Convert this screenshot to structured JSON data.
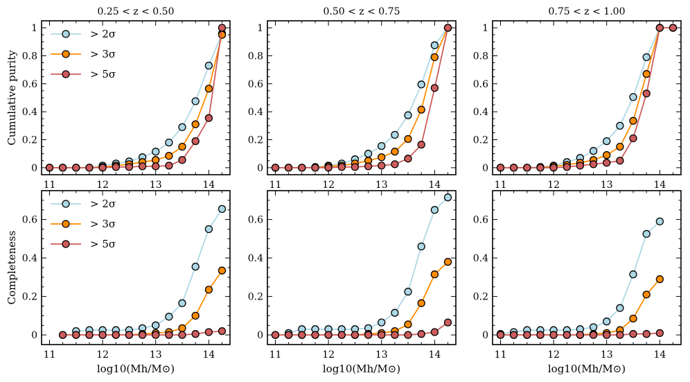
{
  "colors": {
    "sigma2": "#add8e6",
    "sigma3": "#ff8c00",
    "sigma5": "#cd5c5c",
    "edge": "#000000",
    "background": "#ffffff"
  },
  "legend": [
    {
      "key": "s2",
      "label": "> 2σ"
    },
    {
      "key": "s3",
      "label": "> 3σ"
    },
    {
      "key": "s5",
      "label": "> 5σ"
    }
  ],
  "xlabel": "log10(Mh/M⊙)",
  "chart_data": [
    {
      "type": "line",
      "row": "purity",
      "col": 0,
      "title": "0.25 < z < 0.50",
      "ylabel": "Cumulative purity",
      "xlim": [
        10.85,
        14.4
      ],
      "ylim": [
        -0.05,
        1.05
      ],
      "xticks": [
        11,
        12,
        13,
        14
      ],
      "yticks": [
        0.0,
        0.2,
        0.4,
        0.6,
        0.8,
        1.0
      ],
      "series": [
        {
          "name": "s2",
          "x": [
            11.0,
            11.25,
            11.5,
            11.75,
            12.0,
            12.25,
            12.5,
            12.75,
            13.0,
            13.25,
            13.5,
            13.75,
            14.0,
            14.25
          ],
          "y": [
            0.0,
            0.0,
            0.0,
            0.0,
            0.015,
            0.03,
            0.045,
            0.075,
            0.115,
            0.18,
            0.29,
            0.475,
            0.73,
            0.96
          ]
        },
        {
          "name": "s3",
          "x": [
            11.0,
            11.25,
            11.5,
            11.75,
            12.0,
            12.25,
            12.5,
            12.75,
            13.0,
            13.25,
            13.5,
            13.75,
            14.0,
            14.25
          ],
          "y": [
            0.0,
            0.0,
            0.0,
            0.0,
            0.005,
            0.015,
            0.025,
            0.04,
            0.055,
            0.085,
            0.15,
            0.31,
            0.565,
            0.95
          ]
        },
        {
          "name": "s5",
          "x": [
            11.0,
            11.25,
            11.5,
            11.75,
            12.0,
            12.25,
            12.5,
            12.75,
            13.0,
            13.25,
            13.5,
            13.75,
            14.0,
            14.25
          ],
          "y": [
            0.0,
            0.0,
            0.0,
            0.0,
            0.0,
            0.005,
            0.005,
            0.01,
            0.01,
            0.015,
            0.055,
            0.19,
            0.355,
            1.0
          ]
        }
      ]
    },
    {
      "type": "line",
      "row": "purity",
      "col": 1,
      "title": "0.50 < z < 0.75",
      "ylabel": "",
      "xlim": [
        10.85,
        14.4
      ],
      "ylim": [
        -0.05,
        1.05
      ],
      "xticks": [
        11,
        12,
        13,
        14
      ],
      "yticks": [
        0.0,
        0.2,
        0.4,
        0.6,
        0.8,
        1.0
      ],
      "series": [
        {
          "name": "s2",
          "x": [
            11.0,
            11.25,
            11.5,
            11.75,
            12.0,
            12.25,
            12.5,
            12.75,
            13.0,
            13.25,
            13.5,
            13.75,
            14.0,
            14.25
          ],
          "y": [
            0.0,
            0.0,
            0.0,
            0.005,
            0.015,
            0.03,
            0.06,
            0.1,
            0.155,
            0.235,
            0.375,
            0.595,
            0.875,
            1.0
          ]
        },
        {
          "name": "s3",
          "x": [
            11.0,
            11.25,
            11.5,
            11.75,
            12.0,
            12.25,
            12.5,
            12.75,
            13.0,
            13.25,
            13.5,
            13.75,
            14.0,
            14.25
          ],
          "y": [
            0.0,
            0.0,
            0.0,
            0.0,
            0.01,
            0.015,
            0.03,
            0.05,
            0.075,
            0.115,
            0.205,
            0.415,
            0.79,
            1.0
          ]
        },
        {
          "name": "s5",
          "x": [
            11.0,
            11.25,
            11.5,
            11.75,
            12.0,
            12.25,
            12.5,
            12.75,
            13.0,
            13.25,
            13.5,
            13.75,
            14.0,
            14.25
          ],
          "y": [
            0.0,
            0.0,
            0.0,
            0.0,
            0.0,
            0.005,
            0.005,
            0.01,
            0.015,
            0.025,
            0.065,
            0.165,
            0.57,
            1.0
          ]
        }
      ]
    },
    {
      "type": "line",
      "row": "purity",
      "col": 2,
      "title": "0.75 < z < 1.00",
      "ylabel": "",
      "xlim": [
        10.85,
        14.4
      ],
      "ylim": [
        -0.05,
        1.05
      ],
      "xticks": [
        11,
        12,
        13,
        14
      ],
      "yticks": [
        0.0,
        0.2,
        0.4,
        0.6,
        0.8,
        1.0
      ],
      "series": [
        {
          "name": "s2",
          "x": [
            11.0,
            11.25,
            11.5,
            11.75,
            12.0,
            12.25,
            12.5,
            12.75,
            13.0,
            13.25,
            13.5,
            13.75,
            14.0,
            14.25
          ],
          "y": [
            0.0,
            0.0,
            0.0,
            0.005,
            0.015,
            0.04,
            0.07,
            0.12,
            0.19,
            0.3,
            0.505,
            0.79,
            1.0,
            1.0
          ]
        },
        {
          "name": "s3",
          "x": [
            11.0,
            11.25,
            11.5,
            11.75,
            12.0,
            12.25,
            12.5,
            12.75,
            13.0,
            13.25,
            13.5,
            13.75,
            14.0,
            14.25
          ],
          "y": [
            0.0,
            0.0,
            0.0,
            0.0,
            0.01,
            0.02,
            0.035,
            0.055,
            0.09,
            0.15,
            0.335,
            0.67,
            1.0,
            1.0
          ]
        },
        {
          "name": "s5",
          "x": [
            11.0,
            11.25,
            11.5,
            11.75,
            12.0,
            12.25,
            12.5,
            12.75,
            13.0,
            13.25,
            13.5,
            13.75,
            14.0,
            14.25
          ],
          "y": [
            0.0,
            0.0,
            0.0,
            0.0,
            0.0,
            0.005,
            0.015,
            0.025,
            0.035,
            0.05,
            0.21,
            0.53,
            1.0,
            1.0
          ]
        }
      ]
    },
    {
      "type": "line",
      "row": "completeness",
      "col": 0,
      "title": "",
      "ylabel": "Completeness",
      "xlim": [
        10.85,
        14.4
      ],
      "ylim": [
        -0.05,
        0.75
      ],
      "xticks": [
        11,
        12,
        13,
        14
      ],
      "yticks": [
        0.0,
        0.2,
        0.4,
        0.6
      ],
      "series": [
        {
          "name": "s2",
          "x": [
            11.5,
            11.75,
            12.0,
            12.25,
            12.5,
            12.75,
            13.0,
            13.25,
            13.5,
            13.75,
            14.0,
            14.25
          ],
          "y": [
            0.02,
            0.025,
            0.025,
            0.025,
            0.025,
            0.035,
            0.05,
            0.095,
            0.165,
            0.355,
            0.55,
            0.655
          ]
        },
        {
          "name": "s3",
          "x": [
            11.25,
            11.5,
            11.75,
            12.0,
            12.25,
            12.5,
            12.75,
            13.0,
            13.25,
            13.5,
            13.75,
            14.0,
            14.25
          ],
          "y": [
            0.0,
            0.0,
            0.0,
            0.0,
            0.0,
            0.0,
            0.005,
            0.01,
            0.015,
            0.035,
            0.1,
            0.235,
            0.335
          ]
        },
        {
          "name": "s5",
          "x": [
            11.25,
            11.5,
            11.75,
            12.0,
            12.25,
            12.5,
            12.75,
            13.0,
            13.25,
            13.5,
            13.75,
            14.0,
            14.25
          ],
          "y": [
            0.0,
            0.0,
            0.0,
            0.0,
            0.0,
            0.0,
            0.0,
            0.0,
            0.0,
            0.0,
            0.005,
            0.015,
            0.02
          ]
        }
      ]
    },
    {
      "type": "line",
      "row": "completeness",
      "col": 1,
      "title": "",
      "ylabel": "",
      "xlim": [
        10.85,
        14.4
      ],
      "ylim": [
        -0.05,
        0.75
      ],
      "xticks": [
        11,
        12,
        13,
        14
      ],
      "yticks": [
        0.0,
        0.2,
        0.4,
        0.6
      ],
      "series": [
        {
          "name": "s2",
          "x": [
            11.25,
            11.5,
            11.75,
            12.0,
            12.25,
            12.5,
            12.75,
            13.0,
            13.25,
            13.5,
            13.75,
            14.0,
            14.25
          ],
          "y": [
            0.01,
            0.03,
            0.03,
            0.03,
            0.03,
            0.03,
            0.035,
            0.065,
            0.115,
            0.225,
            0.46,
            0.65,
            0.715
          ]
        },
        {
          "name": "s3",
          "x": [
            11.0,
            11.25,
            11.5,
            11.75,
            12.0,
            12.25,
            12.5,
            12.75,
            13.0,
            13.25,
            13.5,
            13.75,
            14.0,
            14.25
          ],
          "y": [
            0.0,
            0.0,
            0.0,
            0.0,
            0.0,
            0.0,
            0.0,
            0.005,
            0.01,
            0.02,
            0.055,
            0.165,
            0.315,
            0.38
          ]
        },
        {
          "name": "s5",
          "x": [
            11.0,
            11.25,
            11.5,
            11.75,
            12.0,
            12.25,
            12.5,
            12.75,
            13.0,
            13.25,
            13.5,
            13.75,
            14.0,
            14.25
          ],
          "y": [
            0.0,
            0.0,
            0.0,
            0.0,
            0.0,
            0.0,
            0.0,
            0.0,
            0.0,
            0.0,
            0.0,
            0.005,
            0.015,
            0.065
          ]
        }
      ]
    },
    {
      "type": "line",
      "row": "completeness",
      "col": 2,
      "title": "",
      "ylabel": "",
      "xlim": [
        10.85,
        14.4
      ],
      "ylim": [
        -0.05,
        0.75
      ],
      "xticks": [
        11,
        12,
        13,
        14
      ],
      "yticks": [
        0.0,
        0.2,
        0.4,
        0.6
      ],
      "series": [
        {
          "name": "s2",
          "x": [
            11.0,
            11.25,
            11.5,
            11.75,
            12.0,
            12.25,
            12.5,
            12.75,
            13.0,
            13.25,
            13.5,
            13.75,
            14.0
          ],
          "y": [
            0.005,
            0.015,
            0.025,
            0.025,
            0.025,
            0.025,
            0.03,
            0.04,
            0.07,
            0.14,
            0.315,
            0.525,
            0.59
          ]
        },
        {
          "name": "s3",
          "x": [
            11.0,
            11.25,
            11.5,
            11.75,
            12.0,
            12.25,
            12.5,
            12.75,
            13.0,
            13.25,
            13.5,
            13.75,
            14.0
          ],
          "y": [
            0.0,
            0.0,
            0.0,
            0.0,
            0.0,
            0.0,
            0.0,
            0.005,
            0.01,
            0.025,
            0.085,
            0.21,
            0.29
          ]
        },
        {
          "name": "s5",
          "x": [
            11.0,
            11.25,
            11.5,
            11.75,
            12.0,
            12.25,
            12.5,
            12.75,
            13.0,
            13.25,
            13.5,
            13.75,
            14.0
          ],
          "y": [
            0.0,
            0.0,
            0.0,
            0.0,
            0.0,
            0.0,
            0.0,
            0.0,
            0.0,
            0.0,
            0.005,
            0.005,
            0.01
          ]
        }
      ]
    }
  ]
}
